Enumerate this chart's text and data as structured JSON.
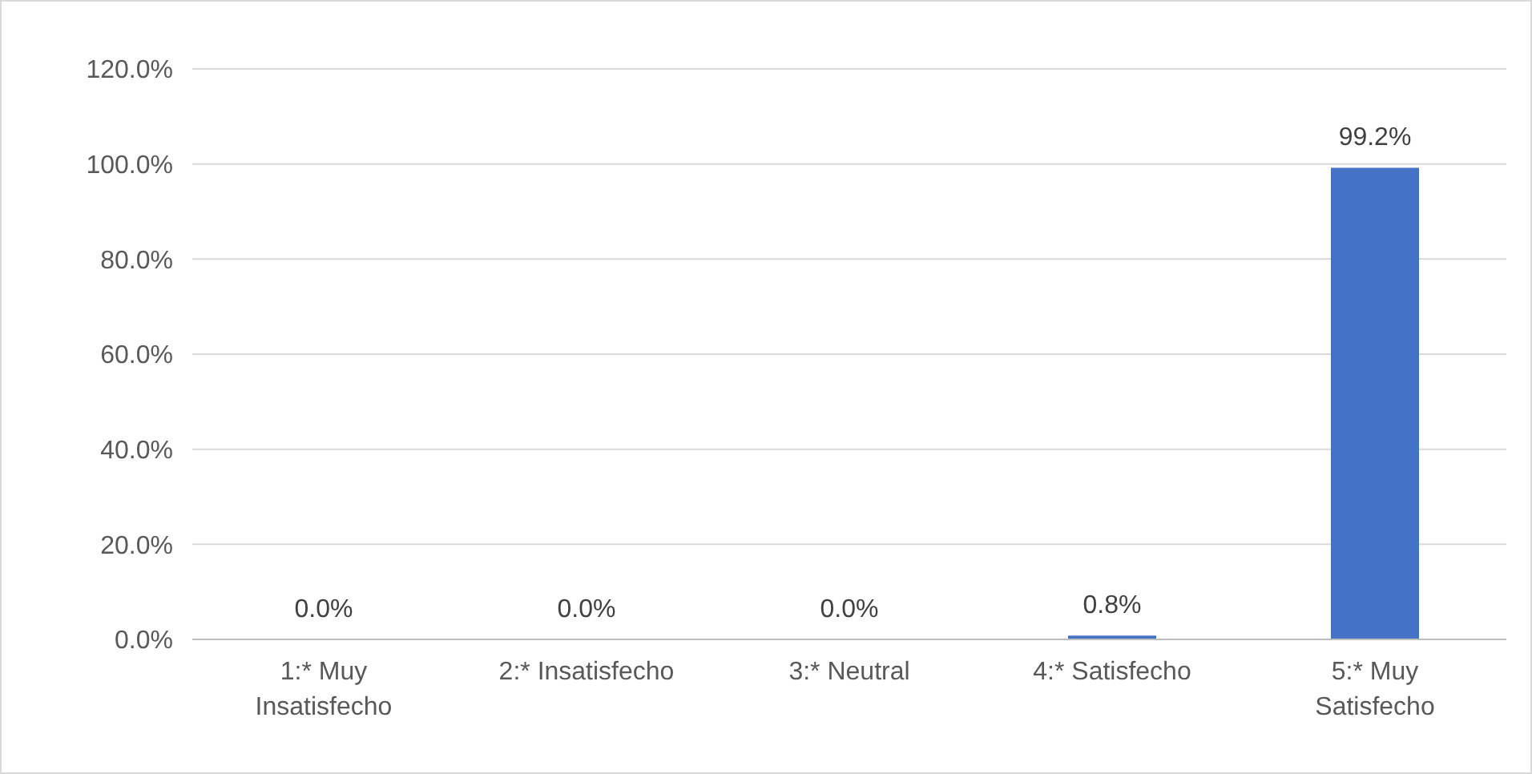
{
  "chart_data": {
    "type": "bar",
    "categories": [
      "1:* Muy Insatisfecho",
      "2:* Insatisfecho",
      "3:* Neutral",
      "4:* Satisfecho",
      "5:* Muy Satisfecho"
    ],
    "values": [
      0,
      0,
      0,
      0.8,
      99.2
    ],
    "value_labels": [
      "0.0%",
      "0.0%",
      "0.0%",
      "0.8%",
      "99.2%"
    ],
    "color": "#4472c4",
    "ylim": [
      0,
      120
    ],
    "yticks": [
      {
        "value": 0,
        "label": "0.0%"
      },
      {
        "value": 20,
        "label": "20.0%"
      },
      {
        "value": 40,
        "label": "40.0%"
      },
      {
        "value": 60,
        "label": "60.0%"
      },
      {
        "value": 80,
        "label": "80.0%"
      },
      {
        "value": 100,
        "label": "100.0%"
      },
      {
        "value": 120,
        "label": "120.0%"
      }
    ],
    "grid": "y"
  }
}
